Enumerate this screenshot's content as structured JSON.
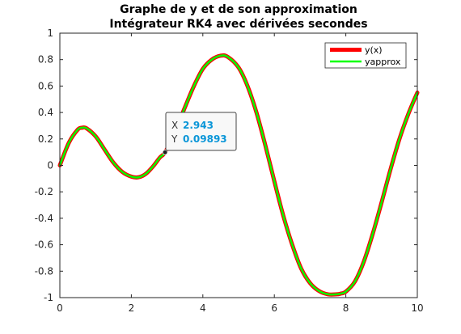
{
  "chart_data": {
    "type": "line",
    "title": [
      "Graphe de y et de son approximation",
      "Intégrateur RK4 avec dérivées secondes"
    ],
    "xlabel": "",
    "ylabel": "",
    "xlim": [
      0,
      10
    ],
    "ylim": [
      -1,
      1
    ],
    "x_ticks": [
      0,
      2,
      4,
      6,
      8,
      10
    ],
    "y_ticks": [
      -1,
      -0.8,
      -0.6,
      -0.4,
      -0.2,
      0,
      0.2,
      0.4,
      0.6,
      0.8,
      1
    ],
    "grid": false,
    "legend_position": "top-right",
    "series": [
      {
        "name": "y(x)",
        "color": "#ff0000",
        "x": [
          0,
          0.25,
          0.5,
          0.63,
          0.75,
          1.0,
          1.25,
          1.5,
          1.75,
          2.0,
          2.2,
          2.4,
          2.6,
          2.8,
          2.943,
          3.2,
          3.5,
          3.75,
          4.0,
          4.25,
          4.5,
          4.7,
          5.0,
          5.25,
          5.5,
          5.75,
          6.0,
          6.25,
          6.5,
          6.75,
          7.0,
          7.25,
          7.5,
          7.75,
          7.85,
          8.0,
          8.25,
          8.5,
          8.75,
          9.0,
          9.25,
          9.5,
          9.75,
          10.0
        ],
        "values": [
          0.0,
          0.17,
          0.27,
          0.285,
          0.28,
          0.22,
          0.12,
          0.02,
          -0.05,
          -0.085,
          -0.09,
          -0.065,
          -0.01,
          0.06,
          0.09893,
          0.24,
          0.44,
          0.6,
          0.73,
          0.8,
          0.83,
          0.82,
          0.74,
          0.6,
          0.4,
          0.15,
          -0.12,
          -0.38,
          -0.6,
          -0.78,
          -0.89,
          -0.95,
          -0.975,
          -0.975,
          -0.97,
          -0.955,
          -0.88,
          -0.73,
          -0.52,
          -0.28,
          -0.03,
          0.2,
          0.39,
          0.55
        ]
      },
      {
        "name": "yapprox",
        "color": "#00ff00",
        "x": [
          0,
          0.25,
          0.5,
          0.63,
          0.75,
          1.0,
          1.25,
          1.5,
          1.75,
          2.0,
          2.2,
          2.4,
          2.6,
          2.8,
          2.943,
          3.2,
          3.5,
          3.75,
          4.0,
          4.25,
          4.5,
          4.7,
          5.0,
          5.25,
          5.5,
          5.75,
          6.0,
          6.25,
          6.5,
          6.75,
          7.0,
          7.25,
          7.5,
          7.75,
          7.85,
          8.0,
          8.25,
          8.5,
          8.75,
          9.0,
          9.25,
          9.5,
          9.75,
          10.0
        ],
        "values": [
          0.0,
          0.17,
          0.27,
          0.285,
          0.28,
          0.22,
          0.12,
          0.02,
          -0.05,
          -0.085,
          -0.09,
          -0.065,
          -0.01,
          0.06,
          0.09893,
          0.24,
          0.44,
          0.6,
          0.73,
          0.8,
          0.83,
          0.82,
          0.74,
          0.6,
          0.4,
          0.15,
          -0.12,
          -0.38,
          -0.6,
          -0.78,
          -0.89,
          -0.95,
          -0.975,
          -0.975,
          -0.97,
          -0.955,
          -0.88,
          -0.73,
          -0.52,
          -0.28,
          -0.03,
          0.2,
          0.39,
          0.55
        ]
      }
    ],
    "datatip": {
      "x": 2.943,
      "y": 0.09893,
      "x_key": "X",
      "y_key": "Y",
      "x_text": "2.943",
      "y_text": "0.09893"
    }
  }
}
